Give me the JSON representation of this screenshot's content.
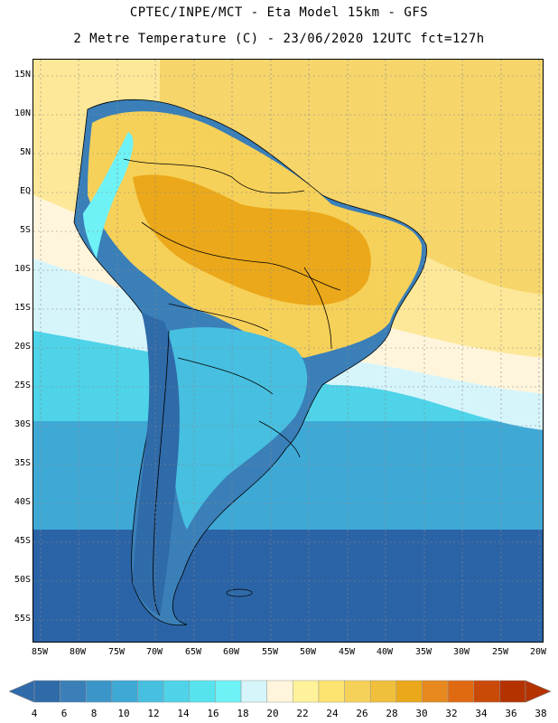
{
  "title": {
    "line1": "CPTEC/INPE/MCT - Eta Model 15km - GFS",
    "line2": "2 Metre Temperature (C) - 23/06/2020 12UTC fct=127h"
  },
  "latitude_labels": [
    "15N",
    "10N",
    "5N",
    "EQ",
    "5S",
    "10S",
    "15S",
    "20S",
    "25S",
    "30S",
    "35S",
    "40S",
    "45S",
    "50S",
    "55S"
  ],
  "longitude_labels": [
    "85W",
    "80W",
    "75W",
    "70W",
    "65W",
    "60W",
    "55W",
    "50W",
    "45W",
    "40W",
    "35W",
    "30W",
    "25W",
    "20W"
  ],
  "colorbar": {
    "labels": [
      "4",
      "6",
      "8",
      "10",
      "12",
      "14",
      "16",
      "18",
      "20",
      "22",
      "24",
      "26",
      "28",
      "30",
      "32",
      "34",
      "36",
      "38"
    ],
    "colors": [
      "#2f6aa9",
      "#3a7fb8",
      "#3b95c8",
      "#3fa9d6",
      "#47bfe0",
      "#4ed3e8",
      "#57e3ee",
      "#6ef2f6",
      "#d6f5fb",
      "#fff5dc",
      "#fff29a",
      "#fde36f",
      "#f6d159",
      "#f0bf3b",
      "#eba81a",
      "#e7891f",
      "#df6a12",
      "#c94a06",
      "#b33200"
    ]
  },
  "map_layers": {
    "ocean_warm": "#f6d56b",
    "ocean_mid": "#fde899",
    "ocean_cool": "#6ef2f6",
    "ocean_cold": "#2b64a6",
    "land_hot": "#eba81a",
    "land_warm": "#f6d159",
    "andes": "#2f6aa9",
    "south_land": "#3a7fb8",
    "border_color": "#000000"
  }
}
